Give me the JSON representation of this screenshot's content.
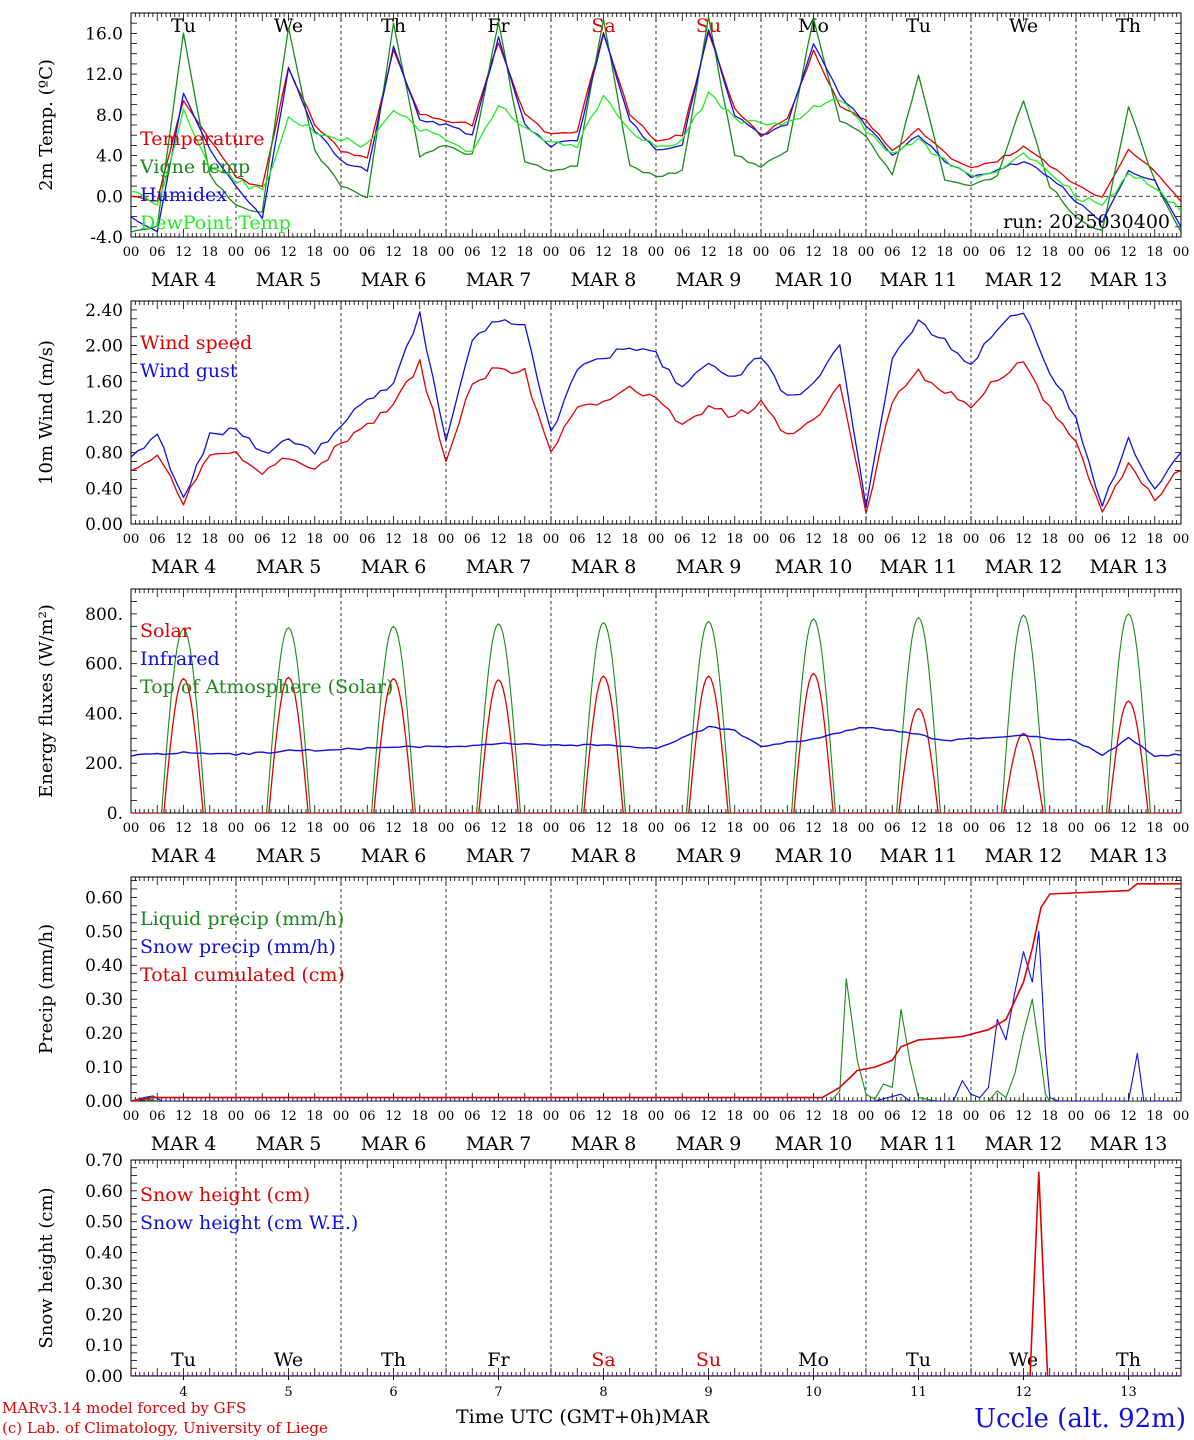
{
  "meta": {
    "station": "Uccle (alt. 92m)",
    "model_line1": "MARv3.14 model forced by GFS",
    "model_line2": "(c) Lab. of Climatology, University of Liege",
    "time_label": "Time UTC (GMT+0h)",
    "month_label": "MAR",
    "run": "run: 2025030400"
  },
  "colors": {
    "red": "#e00000",
    "green": "#1a8a1a",
    "blue": "#1010e0",
    "lightgreen": "#22ee22",
    "black": "#000000"
  },
  "days": {
    "weekday": [
      "Tu",
      "We",
      "Th",
      "Fr",
      "Sa",
      "Su",
      "Mo",
      "Tu",
      "We",
      "Th"
    ],
    "weekend": [
      false,
      false,
      false,
      false,
      true,
      true,
      false,
      false,
      false,
      false
    ],
    "dates": [
      "MAR  4",
      "MAR  5",
      "MAR  6",
      "MAR  7",
      "MAR  8",
      "MAR  9",
      "MAR 10",
      "MAR 11",
      "MAR 12",
      "MAR 13"
    ],
    "numbers": [
      "4",
      "5",
      "6",
      "7",
      "8",
      "9",
      "10",
      "11",
      "12",
      "13"
    ],
    "hour_labels": [
      "00",
      "06",
      "12",
      "18"
    ],
    "final_hour": "00"
  },
  "chart_data": [
    {
      "id": "temp",
      "type": "line",
      "ylabel": "2m Temp. (ºC)",
      "ylim": [
        -4,
        18
      ],
      "yticks": [
        "-4.0",
        "0.0",
        "4.0",
        "8.0",
        "12.0",
        "16.0"
      ],
      "ytick_values": [
        -4,
        0,
        4,
        8,
        12,
        16
      ],
      "zero_line": true,
      "legend": [
        "Temperature",
        "Vigne temp",
        "Humidex",
        "DewPoint Temp"
      ],
      "x_hours": [
        0,
        6,
        12,
        18,
        24,
        30,
        36,
        42,
        48,
        54,
        60,
        66,
        72,
        78,
        84,
        90,
        96,
        102,
        108,
        114,
        120,
        126,
        132,
        138,
        144,
        150,
        156,
        162,
        168,
        174,
        180,
        186,
        192,
        198,
        204,
        210,
        216,
        222,
        228,
        234,
        240
      ],
      "series": [
        {
          "name": "Temperature",
          "color": "red",
          "values": [
            0.0,
            -0.5,
            9.5,
            5.5,
            2.0,
            0.8,
            12.5,
            7.0,
            4.5,
            3.8,
            14.5,
            8.0,
            7.5,
            7.0,
            15.2,
            8.0,
            6.0,
            6.5,
            16.0,
            8.0,
            5.5,
            6.0,
            16.0,
            8.5,
            6.0,
            7.5,
            14.2,
            9.0,
            7.5,
            4.5,
            6.5,
            4.2,
            2.8,
            3.5,
            4.8,
            3.0,
            1.0,
            0.0,
            4.5,
            2.5,
            -0.5
          ]
        },
        {
          "name": "Vigne temp",
          "color": "green",
          "values": [
            -3.5,
            -3.0,
            16.0,
            2.0,
            -1.0,
            -1.5,
            16.5,
            4.5,
            1.0,
            0.0,
            17.0,
            4.0,
            5.0,
            4.0,
            17.0,
            3.5,
            2.5,
            3.0,
            17.5,
            3.0,
            2.0,
            2.5,
            17.5,
            4.0,
            3.0,
            4.5,
            17.5,
            7.5,
            6.0,
            2.0,
            12.0,
            1.5,
            1.0,
            2.0,
            9.5,
            1.0,
            -2.0,
            -3.5,
            8.8,
            1.5,
            -3.5
          ]
        },
        {
          "name": "Humidex",
          "color": "blue",
          "values": [
            -2.0,
            -3.5,
            10.0,
            4.5,
            1.0,
            -2.0,
            12.5,
            6.5,
            3.5,
            2.5,
            14.6,
            7.5,
            7.0,
            6.0,
            15.5,
            7.0,
            5.0,
            5.5,
            16.0,
            7.5,
            4.5,
            5.0,
            16.5,
            8.0,
            6.0,
            7.0,
            15.0,
            10.0,
            7.0,
            4.0,
            6.0,
            3.5,
            2.0,
            2.5,
            3.5,
            2.0,
            -0.5,
            -2.5,
            2.5,
            1.5,
            -3.0
          ]
        },
        {
          "name": "DewPoint Temp",
          "color": "lightgreen",
          "values": [
            0.5,
            -1.0,
            8.5,
            3.0,
            1.5,
            0.5,
            7.5,
            6.5,
            5.5,
            5.0,
            8.5,
            6.5,
            5.5,
            4.5,
            9.0,
            6.5,
            5.0,
            5.0,
            10.0,
            6.5,
            5.0,
            5.5,
            10.0,
            7.5,
            7.0,
            7.0,
            9.0,
            9.5,
            6.5,
            4.0,
            5.5,
            3.5,
            2.0,
            2.5,
            4.0,
            2.5,
            0.0,
            -1.0,
            2.0,
            1.0,
            -1.5
          ]
        }
      ]
    },
    {
      "id": "wind",
      "type": "line",
      "ylabel": "10m Wind (m/s)",
      "ylim": [
        0,
        2.5
      ],
      "yticks": [
        "0.00",
        "0.40",
        "0.80",
        "1.20",
        "1.60",
        "2.00",
        "2.40"
      ],
      "ytick_values": [
        0,
        0.4,
        0.8,
        1.2,
        1.6,
        2.0,
        2.4
      ],
      "zero_line": false,
      "legend": [
        "Wind speed",
        "Wind gust"
      ],
      "x_hours": [
        0,
        6,
        12,
        18,
        24,
        30,
        36,
        42,
        48,
        54,
        60,
        66,
        72,
        78,
        84,
        90,
        96,
        102,
        108,
        114,
        120,
        126,
        132,
        138,
        144,
        150,
        156,
        162,
        168,
        174,
        180,
        186,
        192,
        198,
        204,
        210,
        216,
        222,
        228,
        234,
        240
      ],
      "series": [
        {
          "name": "Wind speed",
          "color": "red",
          "values": [
            0.6,
            0.75,
            0.25,
            0.75,
            0.8,
            0.6,
            0.75,
            0.6,
            0.9,
            1.1,
            1.35,
            1.8,
            0.7,
            1.6,
            1.75,
            1.7,
            0.8,
            1.3,
            1.35,
            1.5,
            1.4,
            1.1,
            1.3,
            1.2,
            1.35,
            1.0,
            1.15,
            1.6,
            0.1,
            1.4,
            1.7,
            1.5,
            1.3,
            1.65,
            1.8,
            1.3,
            0.9,
            0.1,
            0.7,
            0.3,
            0.6
          ]
        },
        {
          "name": "Wind gust",
          "color": "blue",
          "values": [
            0.75,
            1.0,
            0.3,
            1.0,
            1.05,
            0.8,
            0.95,
            0.8,
            1.1,
            1.4,
            1.6,
            2.35,
            0.95,
            2.1,
            2.3,
            2.2,
            1.0,
            1.75,
            1.85,
            2.0,
            1.9,
            1.5,
            1.8,
            1.65,
            1.9,
            1.4,
            1.55,
            2.05,
            0.15,
            1.9,
            2.25,
            2.05,
            1.8,
            2.2,
            2.4,
            1.7,
            1.2,
            0.2,
            0.95,
            0.4,
            0.8
          ]
        }
      ]
    },
    {
      "id": "energy",
      "type": "line",
      "ylabel": "Energy fluxes (W/m²)",
      "ylim": [
        0,
        900
      ],
      "yticks": [
        "0.",
        "200.",
        "400.",
        "600.",
        "800."
      ],
      "ytick_values": [
        0,
        200,
        400,
        600,
        800
      ],
      "zero_line": false,
      "legend": [
        "Solar",
        "Infrared",
        "Top of Atmosphere (Solar)"
      ],
      "solar_peaks": [
        540,
        545,
        540,
        535,
        550,
        550,
        560,
        420,
        320,
        450
      ],
      "toa_peaks": [
        740,
        745,
        750,
        760,
        765,
        770,
        780,
        785,
        795,
        800
      ],
      "infrared": {
        "x_hours": [
          0,
          12,
          24,
          36,
          48,
          60,
          72,
          84,
          96,
          108,
          120,
          132,
          138,
          144,
          156,
          168,
          180,
          186,
          192,
          204,
          216,
          222,
          228,
          234,
          240
        ],
        "values": [
          230,
          245,
          235,
          250,
          255,
          265,
          265,
          280,
          270,
          275,
          260,
          345,
          330,
          265,
          300,
          345,
          315,
          290,
          300,
          310,
          290,
          230,
          300,
          230,
          235
        ]
      }
    },
    {
      "id": "precip",
      "type": "line",
      "ylabel": "Precip (mm/h)",
      "ylim": [
        0,
        0.66
      ],
      "yticks": [
        "0.00",
        "0.10",
        "0.20",
        "0.30",
        "0.40",
        "0.50",
        "0.60"
      ],
      "ytick_values": [
        0,
        0.1,
        0.2,
        0.3,
        0.4,
        0.5,
        0.6
      ],
      "zero_line": false,
      "legend": [
        "Liquid precip (mm/h)",
        "Snow precip (mm/h)",
        "Total cumulated (cm)"
      ],
      "series": [
        {
          "name": "Liquid precip (mm/h)",
          "color": "green",
          "points": [
            [
              0,
              0
            ],
            [
              4,
              0.005
            ],
            [
              6,
              0.0
            ],
            [
              160,
              0
            ],
            [
              162,
              0.03
            ],
            [
              163.5,
              0.36
            ],
            [
              166,
              0.12
            ],
            [
              168,
              0.02
            ],
            [
              170,
              0.005
            ],
            [
              172,
              0.05
            ],
            [
              174,
              0.04
            ],
            [
              176,
              0.27
            ],
            [
              178,
              0.12
            ],
            [
              180,
              0.01
            ],
            [
              184,
              0
            ],
            [
              196,
              0
            ],
            [
              198,
              0.03
            ],
            [
              200,
              0.01
            ],
            [
              202,
              0.08
            ],
            [
              204,
              0.2
            ],
            [
              206,
              0.3
            ],
            [
              208,
              0.12
            ],
            [
              209,
              0.02
            ],
            [
              210,
              0.0
            ],
            [
              240,
              0
            ]
          ]
        },
        {
          "name": "Snow precip (mm/h)",
          "color": "blue",
          "points": [
            [
              0,
              0
            ],
            [
              3,
              0.01
            ],
            [
              5,
              0.015
            ],
            [
              7,
              0.0
            ],
            [
              170,
              0
            ],
            [
              176,
              0.02
            ],
            [
              178,
              0
            ],
            [
              188,
              0
            ],
            [
              190,
              0.06
            ],
            [
              192,
              0.02
            ],
            [
              194,
              0.01
            ],
            [
              196,
              0.04
            ],
            [
              198,
              0.24
            ],
            [
              200,
              0.18
            ],
            [
              202,
              0.32
            ],
            [
              204,
              0.44
            ],
            [
              206,
              0.35
            ],
            [
              207.5,
              0.5
            ],
            [
              209,
              0.15
            ],
            [
              210,
              0.01
            ],
            [
              212,
              0
            ],
            [
              228,
              0
            ],
            [
              230,
              0.14
            ],
            [
              231.5,
              0.0
            ],
            [
              240,
              0
            ]
          ]
        },
        {
          "name": "Total cumulated (cm)",
          "color": "red",
          "points": [
            [
              0,
              0
            ],
            [
              5,
              0.01
            ],
            [
              8,
              0.01
            ],
            [
              158,
              0.01
            ],
            [
              162,
              0.04
            ],
            [
              166,
              0.09
            ],
            [
              170,
              0.1
            ],
            [
              174,
              0.12
            ],
            [
              176,
              0.16
            ],
            [
              180,
              0.18
            ],
            [
              190,
              0.19
            ],
            [
              196,
              0.21
            ],
            [
              200,
              0.24
            ],
            [
              204,
              0.35
            ],
            [
              206,
              0.45
            ],
            [
              208,
              0.57
            ],
            [
              210,
              0.61
            ],
            [
              228,
              0.62
            ],
            [
              230,
              0.64
            ],
            [
              240,
              0.64
            ]
          ]
        }
      ]
    },
    {
      "id": "snow",
      "type": "line",
      "ylabel": "Snow height (cm)",
      "ylim": [
        0,
        0.7
      ],
      "yticks": [
        "0.00",
        "0.10",
        "0.20",
        "0.30",
        "0.40",
        "0.50",
        "0.60",
        "0.70"
      ],
      "ytick_values": [
        0,
        0.1,
        0.2,
        0.3,
        0.4,
        0.5,
        0.6,
        0.7
      ],
      "zero_line": false,
      "legend": [
        "Snow height (cm)",
        "Snow height (cm W.E.)"
      ],
      "series": [
        {
          "name": "Snow height (cm)",
          "color": "red",
          "points": [
            [
              0,
              0
            ],
            [
              205.5,
              0
            ],
            [
              207.5,
              0.66
            ],
            [
              209.5,
              0
            ],
            [
              240,
              0
            ]
          ]
        },
        {
          "name": "Snow height (cm W.E.)",
          "color": "blue",
          "points": [
            [
              0,
              0
            ],
            [
              240,
              0
            ]
          ]
        }
      ]
    }
  ]
}
